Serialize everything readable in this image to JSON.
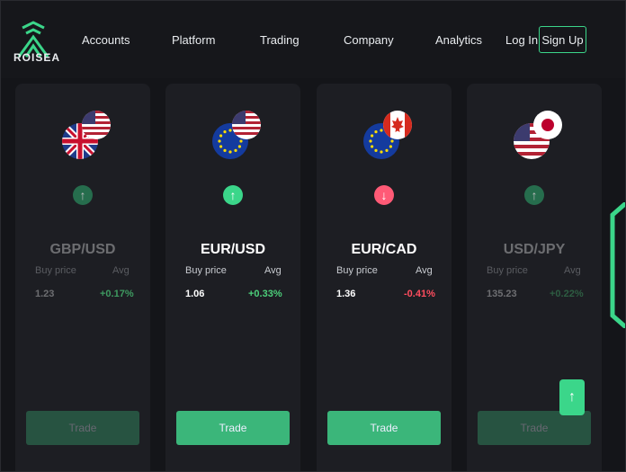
{
  "brand": {
    "name": "ROISEA",
    "logo": "roisea-logo-icon",
    "accent": "#3bd68a"
  },
  "nav": {
    "items": [
      "Accounts",
      "Platform",
      "Trading",
      "Company",
      "Analytics"
    ]
  },
  "auth": {
    "login_label": "Log In",
    "signup_label": "Sign Up"
  },
  "cards": [
    {
      "pair": "GBP/USD",
      "buy_label": "Buy price",
      "avg_label": "Avg",
      "buy_value": "1.23",
      "avg_change": "+0.17%",
      "direction": "up",
      "trade_label": "Trade",
      "flags": [
        "uk-flag-icon",
        "us-flag-icon"
      ]
    },
    {
      "pair": "EUR/USD",
      "buy_label": "Buy price",
      "avg_label": "Avg",
      "buy_value": "1.06",
      "avg_change": "+0.33%",
      "direction": "up",
      "trade_label": "Trade",
      "flags": [
        "eu-flag-icon",
        "us-flag-icon"
      ]
    },
    {
      "pair": "EUR/CAD",
      "buy_label": "Buy price",
      "avg_label": "Avg",
      "buy_value": "1.36",
      "avg_change": "-0.41%",
      "direction": "down",
      "trade_label": "Trade",
      "flags": [
        "eu-flag-icon",
        "canada-flag-icon"
      ]
    },
    {
      "pair": "USD/JPY",
      "buy_label": "Buy price",
      "avg_label": "Avg",
      "buy_value": "135.23",
      "avg_change": "+0.22%",
      "direction": "up",
      "trade_label": "Trade",
      "flags": [
        "us-flag-icon",
        "japan-flag-icon"
      ]
    }
  ],
  "colors": {
    "up": "#3bd68a",
    "down": "#ff5a76",
    "positive_text": "#4ccf7a",
    "negative_text": "#ff4d5e"
  }
}
